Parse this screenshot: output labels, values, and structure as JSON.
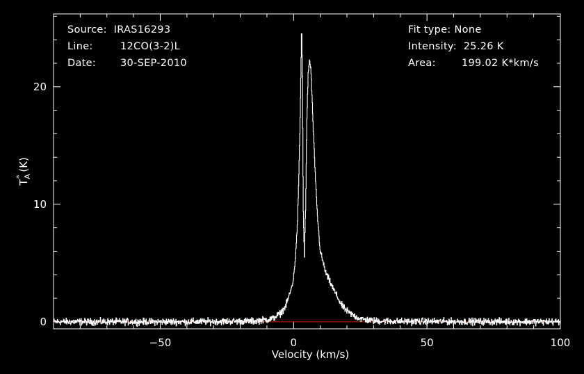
{
  "header_left": {
    "source_label": "Source:",
    "source_value": "IRAS16293",
    "line_label": "Line:",
    "line_value": "12CO(3-2)L",
    "date_label": "Date:",
    "date_value": "30-SEP-2010"
  },
  "header_right": {
    "fit_label": "Fit type:",
    "fit_value": "None",
    "intensity_label": "Intensity:",
    "intensity_value": "25.26 K",
    "area_label": "Area:",
    "area_value": "199.02 K*km/s"
  },
  "colors": {
    "background": "#000000",
    "spectrum": "#ffffff",
    "baseline": "#cc2200"
  },
  "chart_data": {
    "type": "line",
    "title": "",
    "xlabel": "Velocity (km/s)",
    "ylabel_main": "T",
    "ylabel_sub": "A",
    "ylabel_sup": "*",
    "ylabel_unit": "(K)",
    "xlim": [
      -90,
      100
    ],
    "ylim": [
      -0.6,
      26.2
    ],
    "xticks": [
      -50,
      0,
      50,
      100
    ],
    "xtick_labels": [
      "−50",
      "0",
      "50",
      "100"
    ],
    "yticks": [
      0,
      10,
      20
    ],
    "ytick_labels": [
      "0",
      "10",
      "20"
    ],
    "x_minor_step": 10,
    "y_minor_step": 2,
    "grid": false,
    "baseline_y": 0,
    "series": [
      {
        "x": [
          -90,
          -40,
          -15,
          -8,
          -5,
          -3,
          -1,
          0,
          1,
          1.5,
          2,
          2.5,
          3,
          3.3,
          3.6,
          4,
          4.5,
          5,
          5.5,
          6,
          6.5,
          7,
          8,
          9,
          10,
          12,
          14,
          16,
          18,
          20,
          22,
          24,
          26,
          30,
          40,
          100
        ],
        "y": [
          0,
          0,
          0.05,
          0.25,
          0.7,
          1.3,
          2.7,
          3.7,
          6.5,
          8.8,
          12.5,
          17.8,
          25.3,
          21.0,
          10.0,
          5.6,
          9.5,
          17.5,
          21.4,
          22.2,
          21.4,
          18.5,
          13.0,
          8.8,
          6.0,
          4.2,
          3.2,
          2.3,
          1.4,
          0.9,
          0.6,
          0.35,
          0.2,
          0.08,
          0.03,
          0
        ]
      }
    ]
  }
}
